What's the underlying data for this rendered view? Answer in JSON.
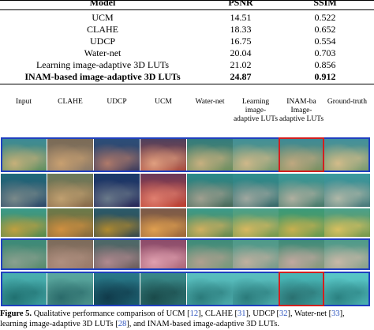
{
  "table": {
    "headers": {
      "model": "Model",
      "psnr": "PSNR",
      "ssim": "SSIM"
    },
    "rows": [
      {
        "model": "UCM",
        "psnr": "14.51",
        "ssim": "0.522"
      },
      {
        "model": "CLAHE",
        "psnr": "18.33",
        "ssim": "0.652"
      },
      {
        "model": "UDCP",
        "psnr": "16.75",
        "ssim": "0.554"
      },
      {
        "model": "Water-net",
        "psnr": "20.04",
        "ssim": "0.703"
      },
      {
        "model": "Learning image-adaptive 3D LUTs",
        "psnr": "21.02",
        "ssim": "0.856"
      },
      {
        "model": "INAM-based image-adaptive 3D LUTs",
        "psnr": "24.87",
        "ssim": "0.912"
      }
    ]
  },
  "figure": {
    "columns": [
      "Input",
      "CLAHE",
      "UDCP",
      "UCM",
      "Water-net",
      "Learning image- adaptive LUTs",
      "INAM-ba Image- adaptive LUTs",
      "Ground-truth"
    ],
    "colors": {
      "blue_frame": "#1f3fbf",
      "red_frame": "#d21f1f"
    },
    "caption": {
      "label": "Figure 5.",
      "text_1": " Qualitative performance comparison of UCM [",
      "ref_1": "12",
      "text_2": "], CLAHE [",
      "ref_2": "31",
      "text_3": "], UDCP [",
      "ref_3": "32",
      "text_4": "], Water-net [",
      "ref_4": "33",
      "text_5": "],",
      "text_6": "learning image-adaptive 3D LUTs [",
      "ref_5": "28",
      "text_7": "], and INAM-based image-adaptive 3D LUTs."
    }
  }
}
